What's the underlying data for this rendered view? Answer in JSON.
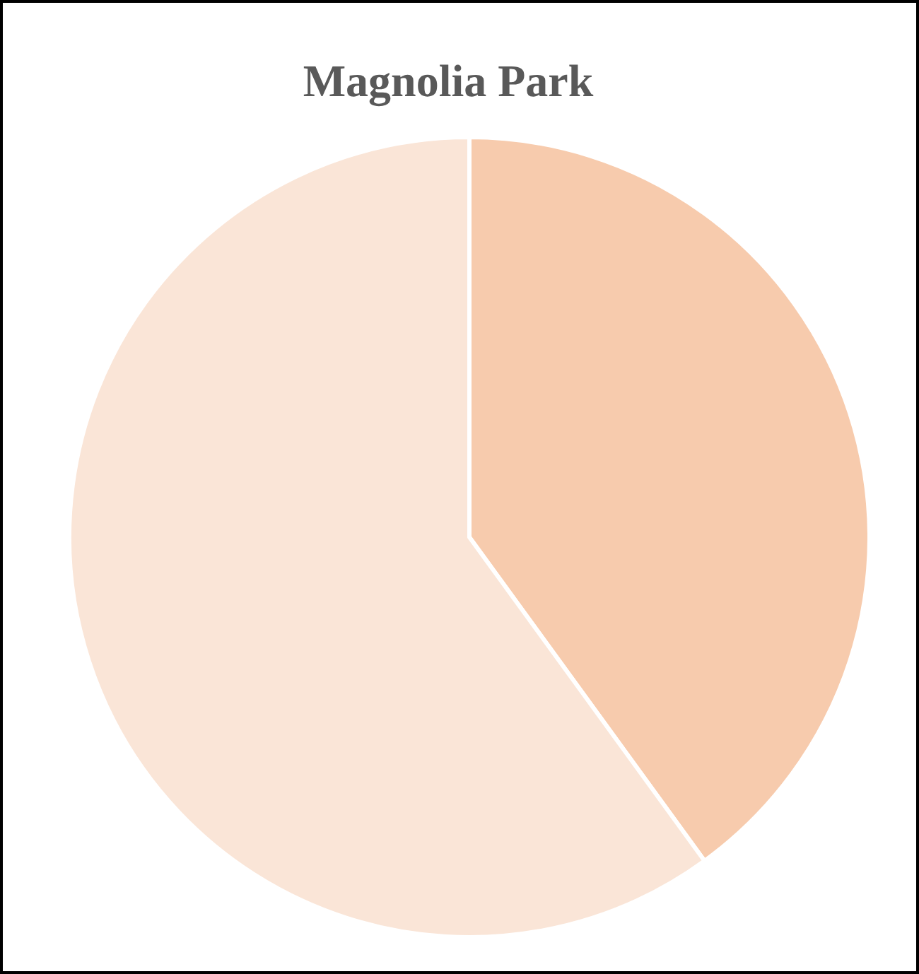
{
  "chart_data": {
    "type": "pie",
    "title": "Magnolia Park",
    "categories": [
      null,
      null
    ],
    "values": [
      40,
      60
    ],
    "colors": [
      "#f7cbad",
      "#fae5d7"
    ]
  }
}
